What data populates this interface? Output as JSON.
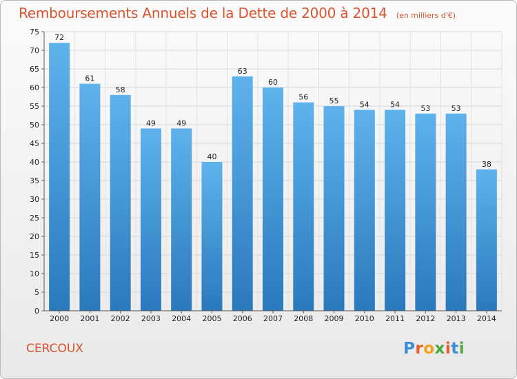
{
  "title": "Remboursements Annuels de la Dette de 2000 à 2014",
  "unit_note": "(en milliers d'€)",
  "commune": "CERCOUX",
  "brand": "Proxiti",
  "brand_colors": [
    "#3a8fd8",
    "#e85a2a",
    "#f2a11c",
    "#4aa83c",
    "#e85a2a",
    "#3a8fd8",
    "#4aa83c"
  ],
  "colors": {
    "title": "#d9542e",
    "bar_top": "#5fb2ec",
    "bar_bottom": "#2a79bd"
  },
  "chart_data": {
    "type": "bar",
    "categories": [
      "2000",
      "2001",
      "2002",
      "2003",
      "2004",
      "2005",
      "2006",
      "2007",
      "2008",
      "2009",
      "2010",
      "2011",
      "2012",
      "2013",
      "2014"
    ],
    "values": [
      72,
      61,
      58,
      49,
      49,
      40,
      63,
      60,
      56,
      55,
      54,
      54,
      53,
      53,
      38
    ],
    "ylim": [
      0,
      75
    ],
    "yticks": [
      0,
      5,
      10,
      15,
      20,
      25,
      30,
      35,
      40,
      45,
      50,
      55,
      60,
      65,
      70,
      75
    ],
    "grid": true,
    "legend": "none"
  }
}
